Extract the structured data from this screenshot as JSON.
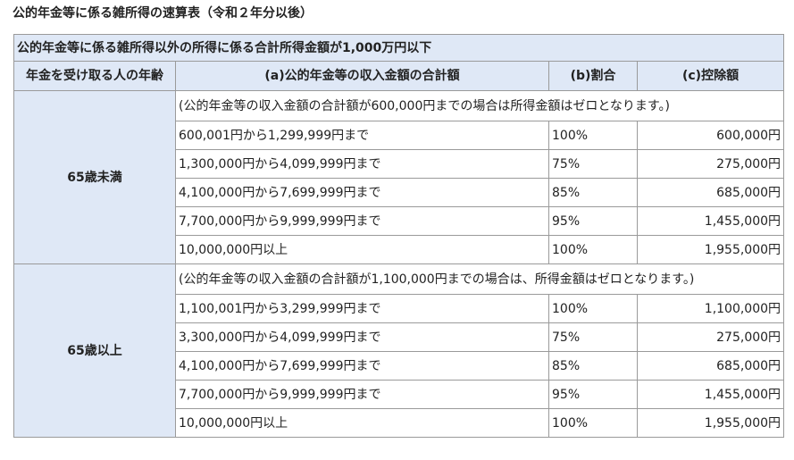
{
  "title": "公的年金等に係る雑所得の速算表（令和２年分以後）",
  "table": {
    "caption": "公的年金等に係る雑所得以外の所得に係る合計所得金額が1,000万円以下",
    "headers": [
      "年金を受け取る人の年齢",
      "(a)公的年金等の収入金額の合計額",
      "(b)割合",
      "(c)控除額"
    ],
    "groups": [
      {
        "age": "65歳未満",
        "note": "(公的年金等の収入金額の合計額が600,000円までの場合は所得金額はゼロとなります。)",
        "rows": [
          {
            "range": "600,001円から1,299,999円まで",
            "rate": "100%",
            "deduction": "600,000円"
          },
          {
            "range": "1,300,000円から4,099,999円まで",
            "rate": "75%",
            "deduction": "275,000円"
          },
          {
            "range": "4,100,000円から7,699,999円まで",
            "rate": "85%",
            "deduction": "685,000円"
          },
          {
            "range": "7,700,000円から9,999,999円まで",
            "rate": "95%",
            "deduction": "1,455,000円"
          },
          {
            "range": "10,000,000円以上",
            "rate": "100%",
            "deduction": "1,955,000円"
          }
        ]
      },
      {
        "age": "65歳以上",
        "note": "(公的年金等の収入金額の合計額が1,100,000円までの場合は、所得金額はゼロとなります。)",
        "rows": [
          {
            "range": "1,100,001円から3,299,999円まで",
            "rate": "100%",
            "deduction": "1,100,000円"
          },
          {
            "range": "3,300,000円から4,099,999円まで",
            "rate": "75%",
            "deduction": "275,000円"
          },
          {
            "range": "4,100,000円から7,699,999円まで",
            "rate": "85%",
            "deduction": "685,000円"
          },
          {
            "range": "7,700,000円から9,999,999円まで",
            "rate": "95%",
            "deduction": "1,455,000円"
          },
          {
            "range": "10,000,000円以上",
            "rate": "100%",
            "deduction": "1,955,000円"
          }
        ]
      }
    ]
  }
}
